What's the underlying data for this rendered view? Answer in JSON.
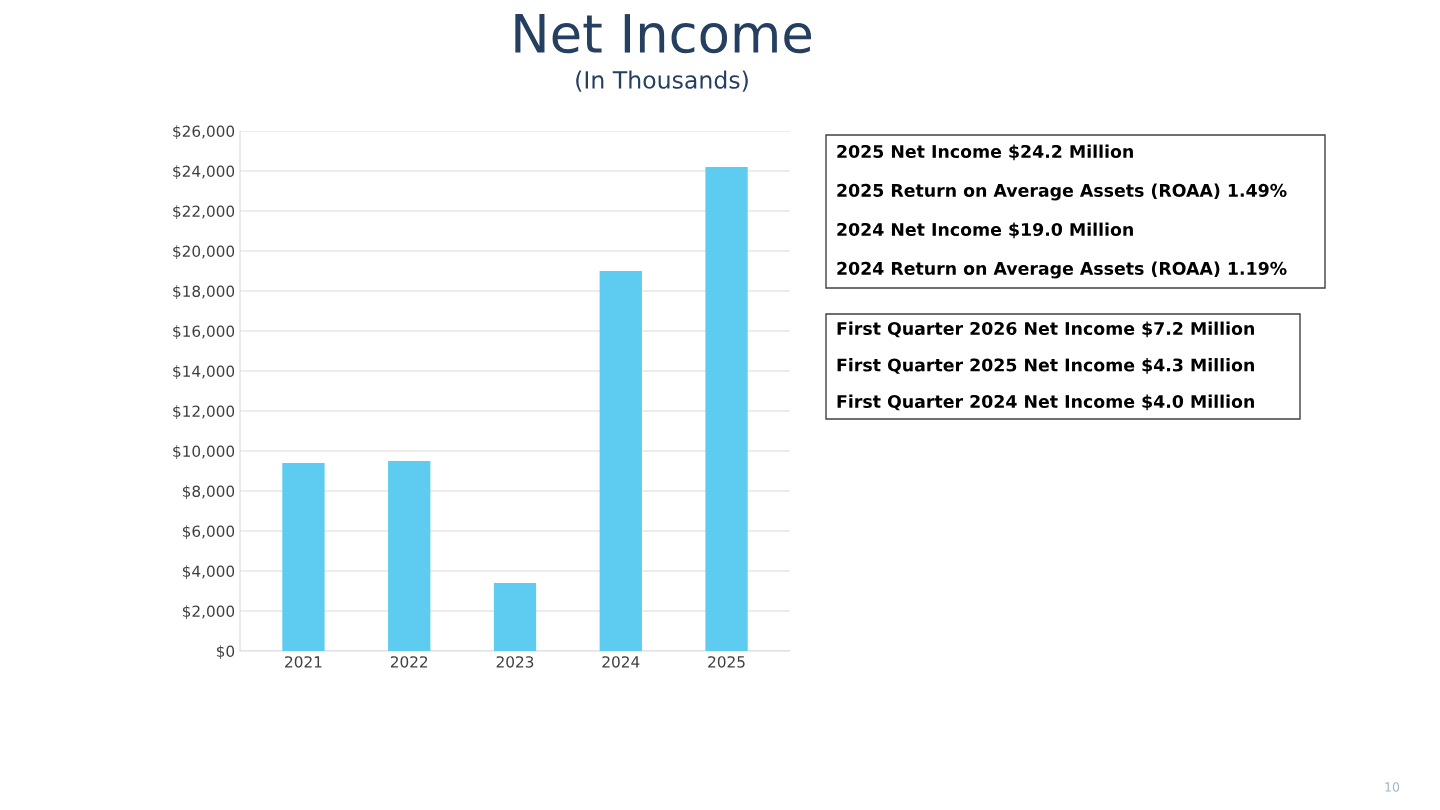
{
  "chart_data": {
    "type": "bar",
    "title": "Net Income",
    "subtitle": "(In Thousands)",
    "categories": [
      "2021",
      "2022",
      "2023",
      "2024",
      "2025"
    ],
    "values": [
      9400,
      9500,
      3400,
      19000,
      24200
    ],
    "color": "#5ecbf0",
    "ylim": [
      0,
      26000
    ],
    "yticks": [
      {
        "value": 0,
        "label": "$0"
      },
      {
        "value": 2000,
        "label": "$2,000"
      },
      {
        "value": 4000,
        "label": "$4,000"
      },
      {
        "value": 6000,
        "label": "$6,000"
      },
      {
        "value": 8000,
        "label": "$8,000"
      },
      {
        "value": 10000,
        "label": "$10,000"
      },
      {
        "value": 12000,
        "label": "$12,000"
      },
      {
        "value": 14000,
        "label": "$14,000"
      },
      {
        "value": 16000,
        "label": "$16,000"
      },
      {
        "value": 18000,
        "label": "$18,000"
      },
      {
        "value": 20000,
        "label": "$20,000"
      },
      {
        "value": 22000,
        "label": "$22,000"
      },
      {
        "value": 24000,
        "label": "$24,000"
      },
      {
        "value": 26000,
        "label": "$26,000"
      }
    ],
    "grid": "y",
    "annotations": [
      "2025 Net Income $24.2 Million",
      "2025 Return on Average Assets (ROAA) 1.49%",
      "2024 Net Income $19.0 Million",
      "2024 Return on Average Assets (ROAA) 1.19%",
      "First Quarter 2026 Net Income $7.2 Million",
      "First Quarter 2025 Net Income $4.3 Million",
      "First Quarter 2024 Net Income $4.0 Million",
      "10"
    ]
  }
}
